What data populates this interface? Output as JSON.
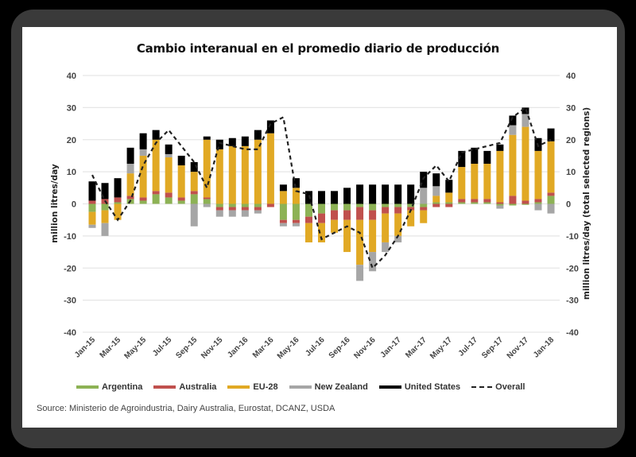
{
  "chart_data": {
    "type": "bar",
    "stacked": true,
    "title": "Cambio interanual en el promedio diario de producción",
    "xlabel": "",
    "ylabel": "million litres/day",
    "y2label": "million litres/day (total selected regions)",
    "ylim": [
      -40,
      40
    ],
    "yticks": [
      "40",
      "30",
      "20",
      "10",
      "0",
      "-10",
      "-20",
      "-30",
      "-40"
    ],
    "grid": true,
    "legend_position": "bottom",
    "categories": [
      "Jan-15",
      "Feb-15",
      "Mar-15",
      "Apr-15",
      "May-15",
      "Jun-15",
      "Jul-15",
      "Aug-15",
      "Sep-15",
      "Oct-15",
      "Nov-15",
      "Dec-15",
      "Jan-16",
      "Feb-16",
      "Mar-16",
      "Apr-16",
      "May-16",
      "Jun-16",
      "Jul-16",
      "Aug-16",
      "Sep-16",
      "Oct-16",
      "Nov-16",
      "Dec-16",
      "Jan-17",
      "Feb-17",
      "Mar-17",
      "Apr-17",
      "May-17",
      "Jun-17",
      "Jul-17",
      "Aug-17",
      "Sep-17",
      "Oct-17",
      "Nov-17",
      "Dec-17",
      "Jan-18"
    ],
    "tick_labels": [
      "Jan-15",
      "Mar-15",
      "May-15",
      "Jul-15",
      "Sep-15",
      "Nov-15",
      "Jan-16",
      "Mar-16",
      "May-16",
      "Jul-16",
      "Sep-16",
      "Nov-16",
      "Jan-17",
      "Mar-17",
      "May-17",
      "Jul-17",
      "Sep-17",
      "Nov-17",
      "Jan-18"
    ],
    "series": [
      {
        "name": "Argentina",
        "color": "#8db255",
        "values": [
          -2.5,
          -2,
          0.5,
          1.5,
          1,
          3,
          2,
          1,
          3,
          1.5,
          -1,
          -1,
          -1,
          -1,
          0,
          -5,
          -5,
          -4,
          -3,
          -2,
          -2,
          -1,
          -2,
          -1,
          -1,
          -1,
          -1,
          0.5,
          0.5,
          0.5,
          0.5,
          0.5,
          -0.5,
          -0.5,
          -0.3,
          0.5,
          2.5
        ]
      },
      {
        "name": "Australia",
        "color": "#c0504d",
        "values": [
          1,
          1.5,
          1.5,
          1,
          1,
          1,
          1.5,
          1,
          1,
          0.5,
          -1,
          -1,
          -1,
          -1,
          -1,
          -1,
          -1,
          -2,
          -3,
          -3,
          -3,
          -4,
          -3,
          -2,
          -2,
          -1,
          -1,
          -1,
          -1,
          1,
          1,
          1,
          0.5,
          2.5,
          1,
          1,
          1
        ]
      },
      {
        "name": "EU-28",
        "color": "#e1a924",
        "values": [
          -4,
          -4,
          -5,
          7,
          13,
          16,
          11,
          10,
          6,
          18,
          17,
          18,
          18,
          20,
          22,
          4,
          5,
          -6,
          -6,
          -4,
          -10,
          -14,
          -10,
          -9,
          -7,
          -5,
          -4,
          2,
          3,
          10,
          11,
          11,
          16,
          19,
          23,
          15,
          16
        ]
      },
      {
        "name": "New Zealand",
        "color": "#a6a6a6",
        "values": [
          -1,
          -4,
          0,
          3,
          2,
          0,
          1,
          0,
          -7,
          -1,
          -2,
          -2,
          -2,
          -1,
          0,
          -1,
          -1,
          0,
          0,
          0,
          0,
          -5,
          -6,
          -3,
          -2,
          0,
          5,
          3,
          0,
          0,
          0,
          0,
          -1,
          3,
          4,
          -2,
          -3
        ]
      },
      {
        "name": "United States",
        "color": "#000000",
        "values": [
          6,
          5,
          6,
          5,
          5,
          3,
          3,
          3,
          3,
          1,
          3,
          2.5,
          3,
          3,
          4,
          2,
          3,
          4,
          4,
          4,
          5,
          6,
          6,
          6,
          6,
          6,
          5,
          4,
          4,
          5,
          5,
          4,
          2,
          3,
          2,
          4,
          4
        ]
      }
    ],
    "overall": {
      "name": "Overall",
      "style": "dashed",
      "color": "#222222",
      "values": [
        9,
        1,
        -5,
        1,
        12,
        19,
        23,
        18,
        13,
        5,
        19,
        18,
        17,
        17,
        25,
        27,
        4,
        3,
        -11,
        -9,
        -7,
        -9,
        -20,
        -16,
        -10,
        -2,
        8,
        12,
        7,
        16,
        17,
        18,
        19,
        27,
        30,
        18,
        20
      ]
    }
  },
  "legend": {
    "items": [
      {
        "label": "Argentina",
        "color": "#8db255"
      },
      {
        "label": "Australia",
        "color": "#c0504d"
      },
      {
        "label": "EU-28",
        "color": "#e1a924"
      },
      {
        "label": "New Zealand",
        "color": "#a6a6a6"
      },
      {
        "label": "United States",
        "color": "#000000"
      },
      {
        "label": "Overall",
        "color": "#222222"
      }
    ]
  },
  "source": "Source: Ministerio de Agroindustria, Dairy Australia, Eurostat, DCANZ, USDA"
}
